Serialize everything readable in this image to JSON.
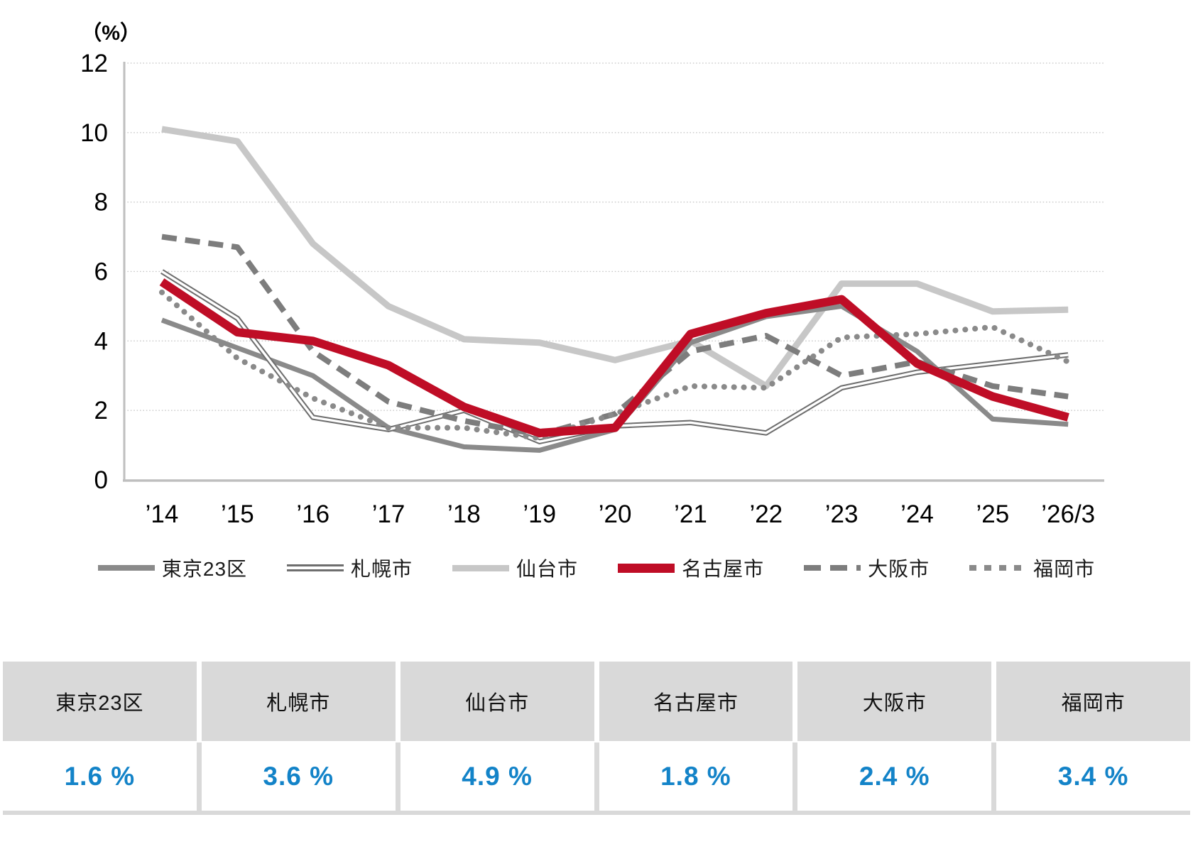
{
  "chart_data": {
    "type": "line",
    "title": "",
    "unit_label": "（%）",
    "xlabel": "",
    "ylabel": "（%）",
    "x": [
      "’14",
      "’15",
      "’16",
      "’17",
      "’18",
      "’19",
      "’20",
      "’21",
      "’22",
      "’23",
      "’24",
      "’25",
      "’26/3"
    ],
    "ylim": [
      0,
      12
    ],
    "yticks": [
      0,
      2,
      4,
      6,
      8,
      10,
      12
    ],
    "grid": "horizontal-dotted",
    "legend_position": "bottom",
    "series": [
      {
        "name": "東京23区",
        "style": "solid",
        "color": "#8a8a8a",
        "width": 7,
        "values": [
          4.6,
          3.8,
          3.0,
          1.5,
          0.95,
          0.85,
          1.45,
          3.95,
          4.7,
          5.0,
          3.7,
          1.75,
          1.6
        ]
      },
      {
        "name": "札幌市",
        "style": "double",
        "color": "#6e6e6e",
        "width": 7.5,
        "values": [
          6.0,
          4.65,
          1.8,
          1.45,
          2.0,
          1.1,
          1.55,
          1.65,
          1.35,
          2.65,
          3.1,
          3.35,
          3.6
        ]
      },
      {
        "name": "仙台市",
        "style": "solid",
        "color": "#c7c7c7",
        "width": 9,
        "values": [
          10.1,
          9.75,
          6.8,
          5.0,
          4.05,
          3.95,
          3.45,
          4.0,
          2.7,
          5.65,
          5.65,
          4.85,
          4.9
        ]
      },
      {
        "name": "名古屋市",
        "style": "solid",
        "color": "#bf0d26",
        "width": 12,
        "values": [
          5.7,
          4.25,
          4.0,
          3.3,
          2.1,
          1.35,
          1.5,
          4.2,
          4.8,
          5.2,
          3.35,
          2.4,
          1.8
        ]
      },
      {
        "name": "大阪市",
        "style": "dashed",
        "color": "#7d7d7d",
        "width": 8,
        "values": [
          7.0,
          6.7,
          3.7,
          2.25,
          1.7,
          1.3,
          1.9,
          3.7,
          4.15,
          3.0,
          3.4,
          2.7,
          2.4
        ]
      },
      {
        "name": "福岡市",
        "style": "dotted",
        "color": "#8a8a8a",
        "width": 8,
        "values": [
          5.4,
          3.5,
          2.35,
          1.5,
          1.5,
          1.2,
          1.9,
          2.7,
          2.65,
          4.1,
          4.2,
          4.4,
          3.4
        ]
      }
    ]
  },
  "table": {
    "headers": [
      "東京23区",
      "札幌市",
      "仙台市",
      "名古屋市",
      "大阪市",
      "福岡市"
    ],
    "values": [
      "1.6 %",
      "3.6 %",
      "4.9 %",
      "1.8 %",
      "2.4 %",
      "3.4 %"
    ],
    "value_color": "#1383c8",
    "header_bg": "#d9d9d9"
  }
}
